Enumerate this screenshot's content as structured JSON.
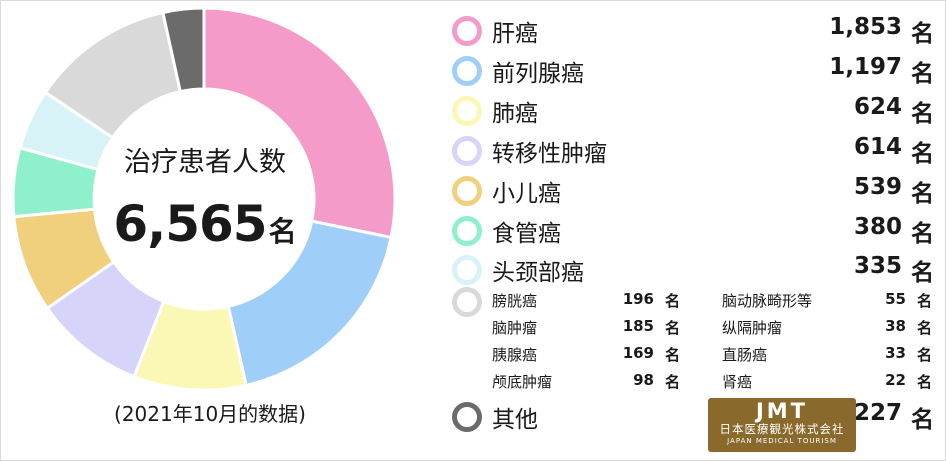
{
  "chart_data": {
    "type": "pie",
    "center": {
      "title": "治疗患者人数",
      "total": "6,565",
      "unit": "名"
    },
    "note": "(2021年10月的数据)",
    "unit": "名",
    "slices": [
      {
        "label": "肝癌",
        "value": 1853,
        "display": "1,853",
        "color": "#f59bc9"
      },
      {
        "label": "前列腺癌",
        "value": 1197,
        "display": "1,197",
        "color": "#9fcff8"
      },
      {
        "label": "肺癌",
        "value": 624,
        "display": "624",
        "color": "#fbf7b5"
      },
      {
        "label": "转移性肿瘤",
        "value": 614,
        "display": "614",
        "color": "#d6d4f8"
      },
      {
        "label": "小儿癌",
        "value": 539,
        "display": "539",
        "color": "#f1d07d"
      },
      {
        "label": "食管癌",
        "value": 380,
        "display": "380",
        "color": "#8ff0cc"
      },
      {
        "label": "头颈部癌",
        "value": 335,
        "display": "335",
        "color": "#d8f3f8"
      },
      {
        "label": "other-small",
        "value": 796,
        "color": "#d9d9d9"
      },
      {
        "label": "其他",
        "value": 227,
        "display": "227",
        "color": "#6b6b6b"
      }
    ],
    "small_group": [
      {
        "label": "膀胱癌",
        "value": "196"
      },
      {
        "label": "脑动脉畸形等",
        "value": "55"
      },
      {
        "label": "脑肿瘤",
        "value": "185"
      },
      {
        "label": "纵隔肿瘤",
        "value": "38"
      },
      {
        "label": "胰腺癌",
        "value": "169"
      },
      {
        "label": "直肠癌",
        "value": "33"
      },
      {
        "label": "颅底肿瘤",
        "value": "98"
      },
      {
        "label": "肾癌",
        "value": "22"
      }
    ]
  },
  "logo": {
    "mark": "JMT",
    "line1": "日本医療観光株式会社",
    "line2": "JAPAN MEDICAL TOURISM"
  }
}
